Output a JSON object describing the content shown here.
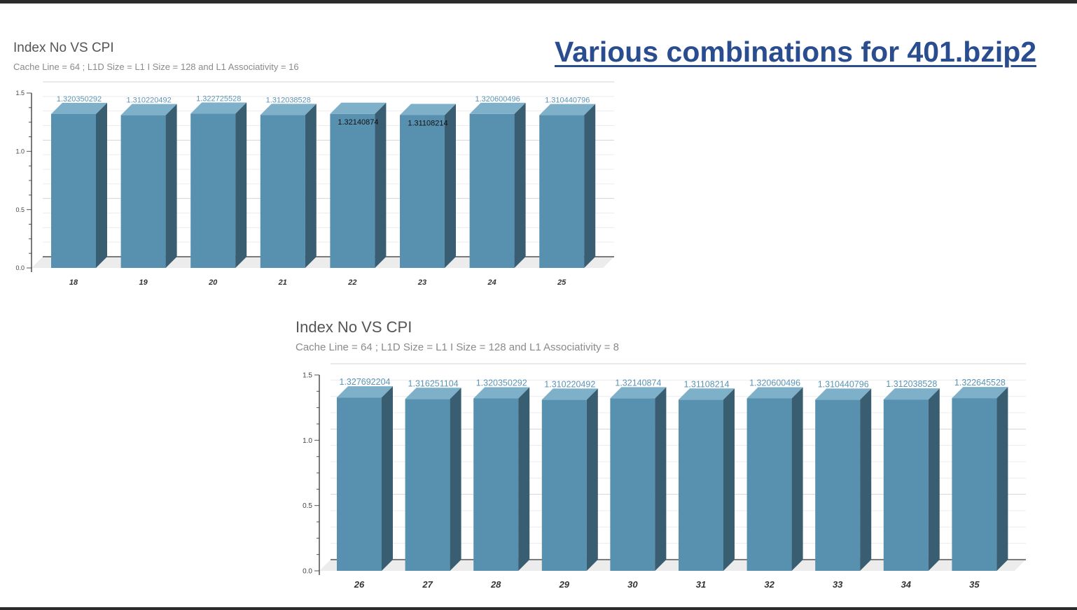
{
  "slide": {
    "title": "Various combinations for 401.bzip2"
  },
  "colors": {
    "bar_front": "#5891b0",
    "bar_side": "#395d71",
    "bar_top": "#7fb0c9",
    "value_label": "#5b94b4",
    "title": "#2a4d8f"
  },
  "chart_data": [
    {
      "type": "bar",
      "title": "Index No VS CPI",
      "subtitle": "Cache Line = 64 ; L1D Size = L1 I Size = 128  and L1 Associativity = 16",
      "categories": [
        "18",
        "19",
        "20",
        "21",
        "22",
        "23",
        "24",
        "25"
      ],
      "values": [
        1.320350292,
        1.310220492,
        1.322725528,
        1.312038528,
        1.32140874,
        1.31108214,
        1.320600496,
        1.310440796
      ],
      "value_labels": [
        "1.320350292",
        "1.310220492",
        "1.322725528",
        "1.312038528",
        "1.32140874",
        "1.31108214",
        "1.320600496",
        "1.310440796"
      ],
      "yticks": [
        "0.0",
        "0.5",
        "1.0",
        "1.5"
      ],
      "ylim": [
        0,
        1.5
      ],
      "grid": true,
      "style": "3d"
    },
    {
      "type": "bar",
      "title": "Index No VS CPI",
      "subtitle": "Cache Line = 64 ; L1D Size = L1 I Size = 128  and L1 Associativity = 8",
      "categories": [
        "26",
        "27",
        "28",
        "29",
        "30",
        "31",
        "32",
        "33",
        "34",
        "35"
      ],
      "values": [
        1.327692204,
        1.316251104,
        1.320350292,
        1.310220492,
        1.32140874,
        1.31108214,
        1.320600496,
        1.310440796,
        1.312038528,
        1.322645528
      ],
      "value_labels": [
        "1.327692204",
        "1.316251104",
        "1.320350292",
        "1.310220492",
        "1.32140874",
        "1.31108214",
        "1.320600496",
        "1.310440796",
        "1.312038528",
        "1.322645528"
      ],
      "yticks": [
        "0.0",
        "0.5",
        "1.0",
        "1.5"
      ],
      "ylim": [
        0,
        1.5
      ],
      "grid": true,
      "style": "3d"
    }
  ]
}
